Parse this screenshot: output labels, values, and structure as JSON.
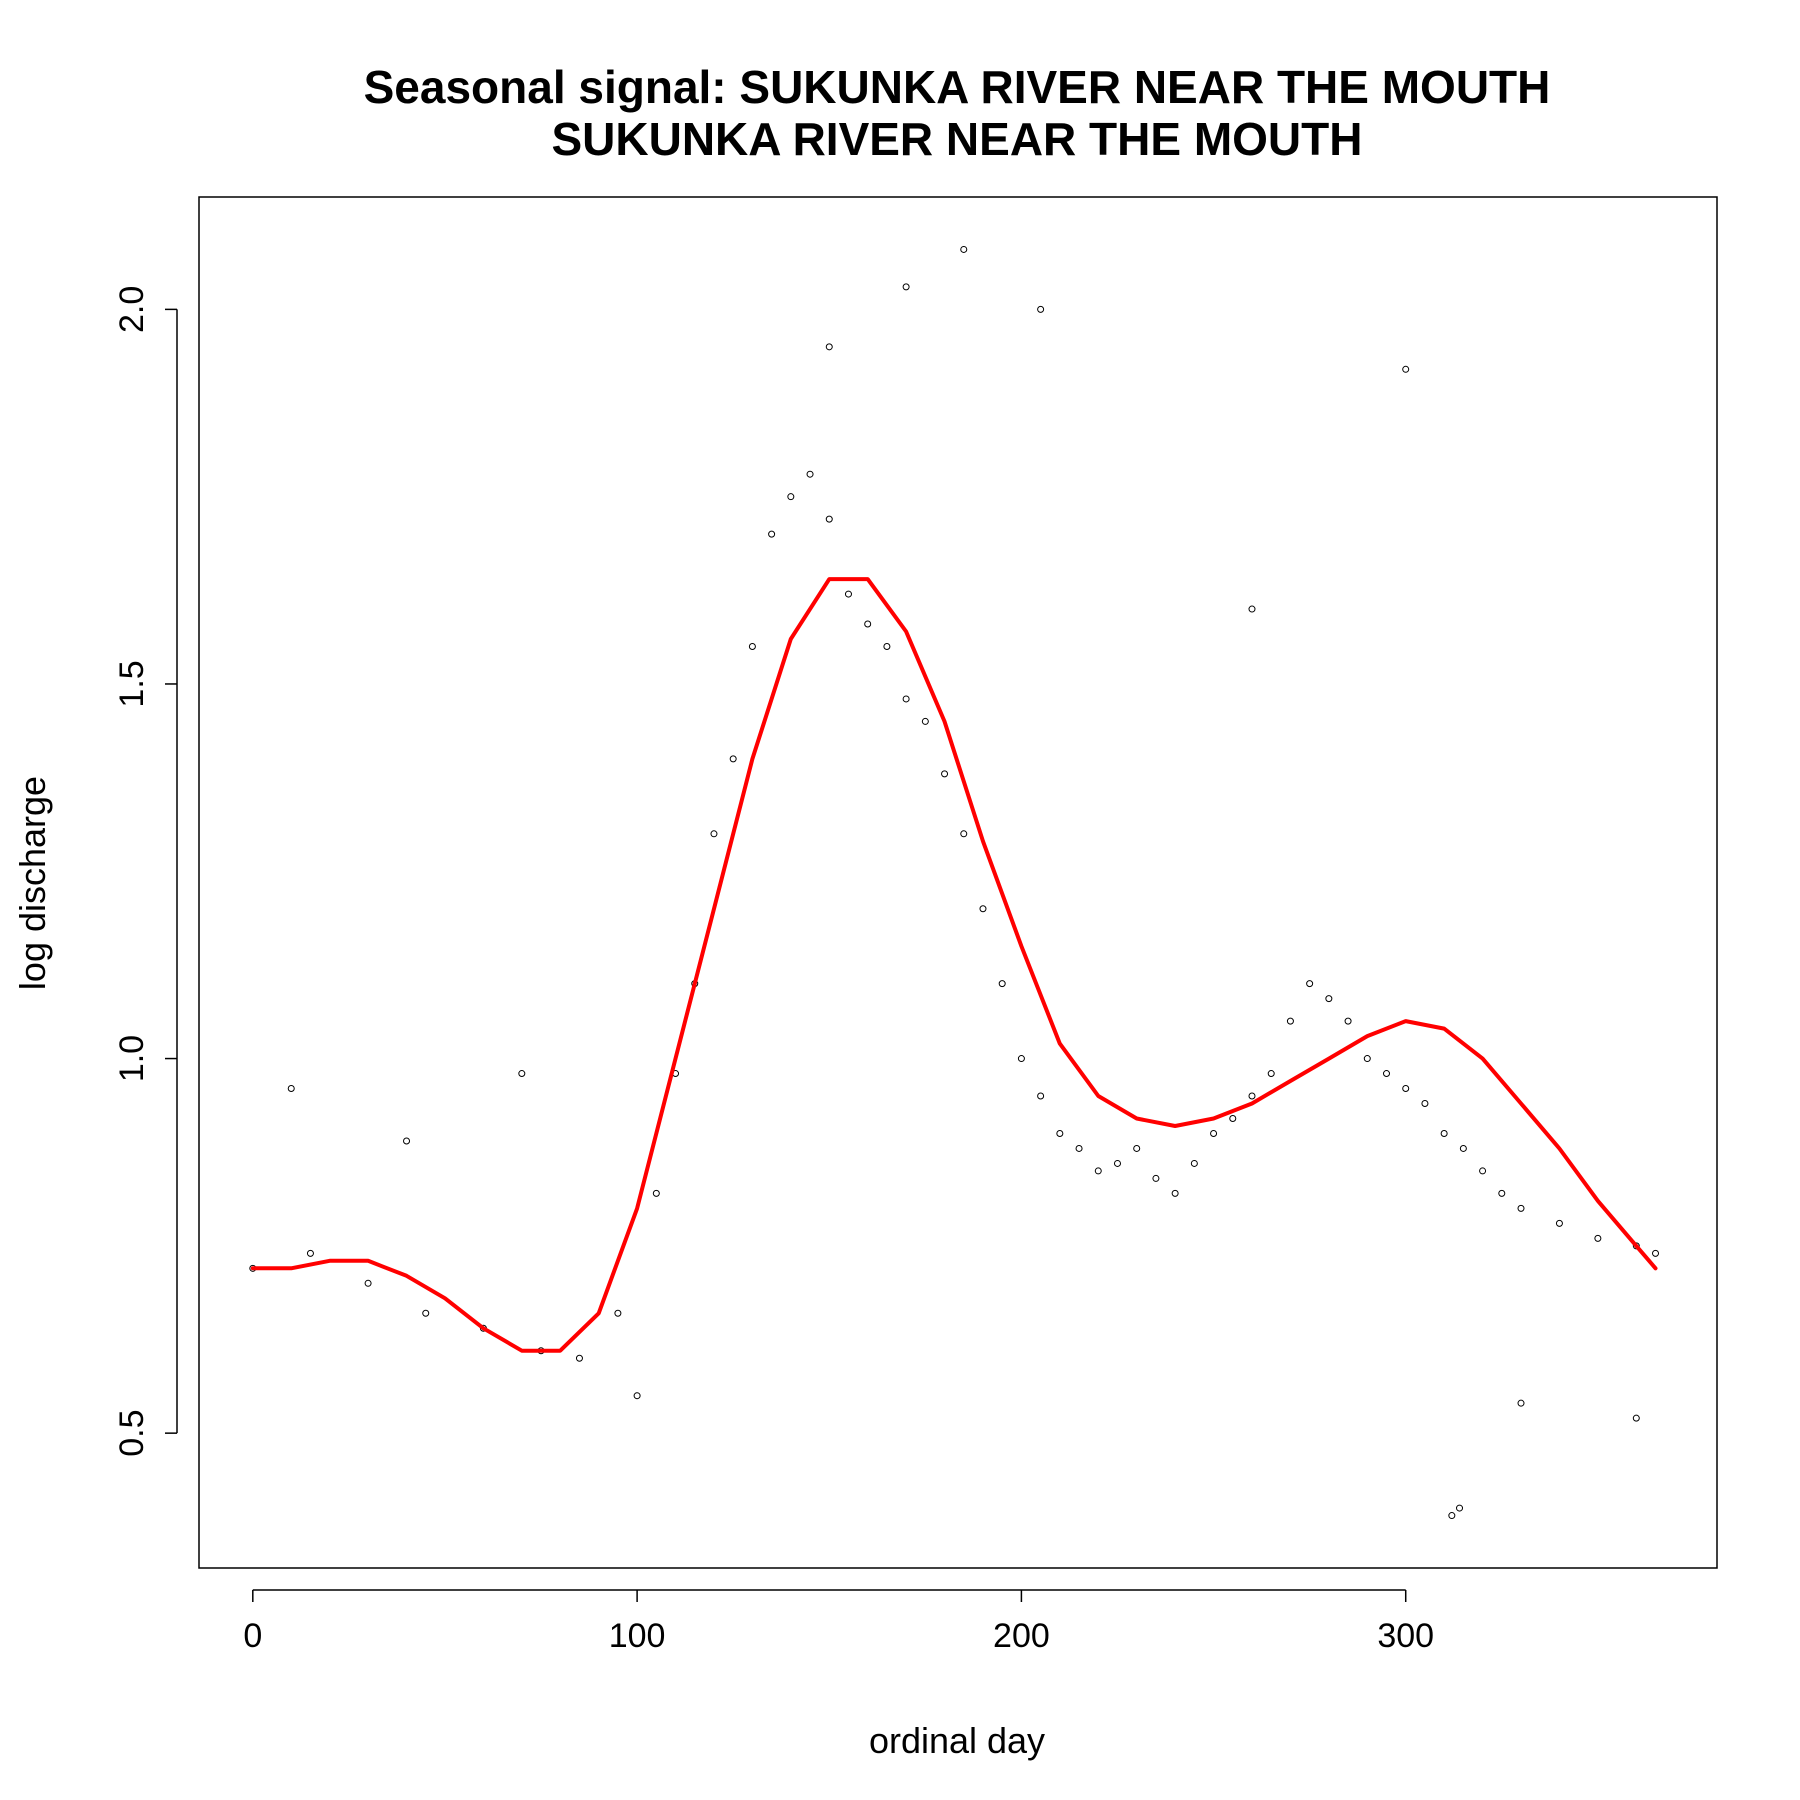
{
  "chart_data": {
    "type": "scatter",
    "title": "Seasonal signal: SUKUNKA RIVER NEAR THE MOUTH",
    "subtitle": "SUKUNKA RIVER NEAR THE MOUTH",
    "xlabel": "ordinal day",
    "ylabel": "log discharge",
    "xlim": [
      -14,
      381
    ],
    "ylim": [
      0.32,
      2.15
    ],
    "xticks": [
      0,
      100,
      200,
      300
    ],
    "xtick_labels": [
      "0",
      "100",
      "200",
      "300"
    ],
    "yticks": [
      0.5,
      1.0,
      1.5,
      2.0
    ],
    "ytick_labels": [
      "0.5",
      "1.0",
      "1.5",
      "2.0"
    ],
    "grid": false,
    "point_color": "#000000",
    "fit_color": "#ff0000",
    "series": [
      {
        "kind": "points",
        "x": [
          0,
          15,
          30,
          45,
          60,
          75,
          85,
          95,
          105,
          110,
          115,
          120,
          125,
          130,
          135,
          140,
          145,
          150,
          155,
          160,
          165,
          170,
          175,
          180,
          185,
          190,
          195,
          200,
          205,
          210,
          215,
          220,
          225,
          230,
          235,
          240,
          245,
          250,
          255,
          260,
          265,
          270,
          275,
          280,
          285,
          290,
          295,
          300,
          305,
          310,
          315,
          320,
          325,
          330,
          340,
          350,
          360,
          365,
          10,
          40,
          70,
          100,
          150,
          170,
          185,
          205,
          260,
          300,
          312,
          314,
          330,
          360
        ],
        "y": [
          0.72,
          0.74,
          0.7,
          0.66,
          0.64,
          0.61,
          0.6,
          0.66,
          0.82,
          0.98,
          1.1,
          1.3,
          1.4,
          1.55,
          1.7,
          1.75,
          1.78,
          1.72,
          1.62,
          1.58,
          1.55,
          1.48,
          1.45,
          1.38,
          1.3,
          1.2,
          1.1,
          1.0,
          0.95,
          0.9,
          0.88,
          0.85,
          0.86,
          0.88,
          0.84,
          0.82,
          0.86,
          0.9,
          0.92,
          0.95,
          0.98,
          1.05,
          1.1,
          1.08,
          1.05,
          1.0,
          0.98,
          0.96,
          0.94,
          0.9,
          0.88,
          0.85,
          0.82,
          0.8,
          0.78,
          0.76,
          0.75,
          0.74,
          0.96,
          0.89,
          0.98,
          0.55,
          1.95,
          2.03,
          2.08,
          2.0,
          1.6,
          1.92,
          0.39,
          0.4,
          0.54,
          0.52
        ]
      },
      {
        "kind": "fit",
        "name": "seasonal fit",
        "x": [
          0,
          10,
          20,
          30,
          40,
          50,
          60,
          70,
          80,
          90,
          100,
          110,
          120,
          130,
          140,
          150,
          160,
          170,
          180,
          190,
          200,
          210,
          220,
          230,
          240,
          250,
          260,
          270,
          280,
          290,
          300,
          310,
          320,
          330,
          340,
          350,
          360,
          365
        ],
        "y": [
          0.72,
          0.72,
          0.73,
          0.73,
          0.71,
          0.68,
          0.64,
          0.61,
          0.61,
          0.66,
          0.8,
          1.0,
          1.2,
          1.4,
          1.56,
          1.64,
          1.64,
          1.57,
          1.45,
          1.29,
          1.15,
          1.02,
          0.95,
          0.92,
          0.91,
          0.92,
          0.94,
          0.97,
          1.0,
          1.03,
          1.05,
          1.04,
          1.0,
          0.94,
          0.88,
          0.81,
          0.75,
          0.72
        ]
      }
    ]
  }
}
